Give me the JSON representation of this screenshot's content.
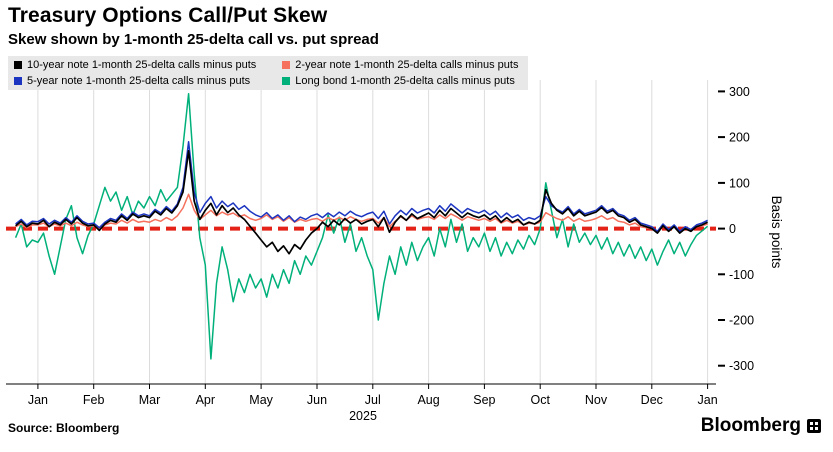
{
  "footer": {
    "source": "Source: Bloomberg",
    "brand": "Bloomberg"
  },
  "chart_data": {
    "type": "line",
    "title": "Treasury Options Call/Put Skew",
    "subtitle": "Skew shown by 1-month 25-delta call vs. put spread",
    "ylabel": "Basis points",
    "year_label": "2025",
    "x_unit": "months from Jan 2025 (0 = Jan 1, 2025)",
    "xlim": [
      -0.5,
      12.15
    ],
    "ylim": [
      -340,
      325
    ],
    "y_ticks": [
      300,
      200,
      100,
      0,
      -100,
      -200,
      -300
    ],
    "x_ticks": [
      {
        "value": 0,
        "label": "Jan"
      },
      {
        "value": 1,
        "label": "Feb"
      },
      {
        "value": 2,
        "label": "Mar"
      },
      {
        "value": 3,
        "label": "Apr"
      },
      {
        "value": 4,
        "label": "May"
      },
      {
        "value": 5,
        "label": "Jun"
      },
      {
        "value": 6,
        "label": "Jul"
      },
      {
        "value": 7,
        "label": "Aug"
      },
      {
        "value": 8,
        "label": "Sep"
      },
      {
        "value": 9,
        "label": "Oct"
      },
      {
        "value": 10,
        "label": "Nov"
      },
      {
        "value": 11,
        "label": "Dec"
      },
      {
        "value": 12,
        "label": "Jan"
      }
    ],
    "grid": {
      "vertical": true,
      "horizontal": false,
      "color": "#dcdcdc"
    },
    "zero_line": {
      "value": 0,
      "color": "#e42217",
      "style": "dashed"
    },
    "legend_position": "top-left",
    "x_start": -0.4,
    "x_step": 0.1,
    "draw_order": [
      3,
      1,
      2,
      0
    ],
    "series": [
      {
        "name": "10-year note 1-month 25-delta calls minus puts",
        "color": "#000000",
        "values": [
          6,
          16,
          4,
          12,
          10,
          18,
          4,
          14,
          8,
          20,
          10,
          24,
          12,
          6,
          8,
          -4,
          10,
          18,
          14,
          28,
          18,
          32,
          24,
          28,
          24,
          38,
          30,
          44,
          34,
          50,
          80,
          170,
          60,
          20,
          40,
          55,
          30,
          50,
          35,
          45,
          30,
          20,
          5,
          -10,
          -25,
          -40,
          -30,
          -50,
          -38,
          -55,
          -35,
          -45,
          -25,
          -10,
          0,
          14,
          4,
          18,
          8,
          22,
          12,
          20,
          10,
          16,
          20,
          4,
          24,
          -8,
          14,
          28,
          18,
          32,
          22,
          28,
          34,
          24,
          40,
          28,
          44,
          34,
          24,
          34,
          28,
          24,
          30,
          20,
          28,
          14,
          24,
          14,
          20,
          8,
          14,
          10,
          18,
          85,
          55,
          40,
          32,
          44,
          28,
          38,
          28,
          32,
          36,
          46,
          34,
          40,
          28,
          24,
          14,
          20,
          8,
          4,
          0,
          -10,
          6,
          -6,
          4,
          -10,
          0,
          -6,
          4,
          8,
          14
        ]
      },
      {
        "name": "2-year note 1-month 25-delta calls minus puts",
        "color": "#f5715d",
        "values": [
          4,
          10,
          2,
          8,
          8,
          12,
          4,
          10,
          6,
          12,
          6,
          14,
          8,
          4,
          6,
          0,
          8,
          12,
          10,
          18,
          12,
          20,
          14,
          16,
          14,
          20,
          16,
          24,
          18,
          28,
          45,
          75,
          40,
          20,
          30,
          40,
          28,
          36,
          30,
          34,
          26,
          30,
          22,
          18,
          22,
          30,
          20,
          26,
          16,
          24,
          14,
          20,
          16,
          20,
          22,
          16,
          24,
          18,
          24,
          18,
          26,
          20,
          16,
          20,
          22,
          12,
          24,
          4,
          16,
          26,
          18,
          28,
          20,
          24,
          26,
          20,
          30,
          22,
          32,
          26,
          18,
          26,
          22,
          18,
          22,
          16,
          22,
          12,
          18,
          12,
          16,
          8,
          12,
          10,
          14,
          35,
          28,
          22,
          18,
          26,
          16,
          22,
          16,
          18,
          22,
          28,
          20,
          24,
          16,
          14,
          8,
          12,
          4,
          2,
          0,
          -6,
          4,
          -2,
          4,
          -6,
          0,
          -4,
          4,
          6,
          10
        ]
      },
      {
        "name": "5-year note 1-month 25-delta calls minus puts",
        "color": "#1c35c0",
        "values": [
          10,
          20,
          8,
          16,
          15,
          22,
          10,
          18,
          12,
          24,
          14,
          28,
          16,
          10,
          12,
          2,
          14,
          22,
          18,
          32,
          22,
          36,
          28,
          32,
          28,
          42,
          34,
          48,
          38,
          54,
          90,
          190,
          80,
          35,
          55,
          70,
          45,
          60,
          48,
          56,
          42,
          50,
          38,
          30,
          25,
          35,
          22,
          30,
          18,
          28,
          15,
          25,
          20,
          28,
          32,
          24,
          34,
          26,
          36,
          28,
          38,
          30,
          26,
          32,
          36,
          22,
          38,
          10,
          28,
          40,
          30,
          44,
          34,
          40,
          44,
          34,
          50,
          38,
          54,
          44,
          34,
          44,
          38,
          34,
          40,
          30,
          38,
          24,
          34,
          24,
          30,
          18,
          24,
          20,
          28,
          70,
          50,
          42,
          36,
          48,
          32,
          42,
          32,
          36,
          40,
          50,
          38,
          44,
          32,
          28,
          18,
          24,
          12,
          8,
          4,
          -6,
          10,
          -2,
          8,
          -6,
          4,
          -2,
          8,
          12,
          18
        ]
      },
      {
        "name": "Long bond 1-month 25-delta calls minus puts",
        "color": "#00b07a",
        "values": [
          -20,
          10,
          -40,
          -25,
          -30,
          -10,
          -60,
          -100,
          -40,
          20,
          50,
          -20,
          -55,
          -15,
          10,
          50,
          90,
          60,
          80,
          40,
          70,
          30,
          60,
          45,
          70,
          50,
          85,
          60,
          75,
          90,
          180,
          295,
          120,
          -20,
          -80,
          -285,
          -120,
          -40,
          -90,
          -160,
          -110,
          -140,
          -100,
          -130,
          -110,
          -150,
          -100,
          -130,
          -90,
          -120,
          -70,
          -100,
          -60,
          -80,
          -50,
          -20,
          30,
          -10,
          25,
          -30,
          10,
          -50,
          -20,
          -60,
          -90,
          -200,
          -120,
          -60,
          -100,
          -40,
          -80,
          -30,
          -70,
          -40,
          -20,
          -60,
          0,
          -40,
          20,
          -30,
          10,
          -50,
          -20,
          -40,
          -10,
          -50,
          -20,
          -60,
          -30,
          -55,
          -25,
          -45,
          -15,
          -35,
          0,
          100,
          40,
          -20,
          20,
          -40,
          10,
          -30,
          -10,
          -35,
          -15,
          -45,
          -20,
          -55,
          -30,
          -60,
          -35,
          -65,
          -40,
          -70,
          -45,
          -80,
          -50,
          -25,
          -55,
          -30,
          -60,
          -35,
          -15,
          -5,
          5
        ]
      }
    ]
  }
}
